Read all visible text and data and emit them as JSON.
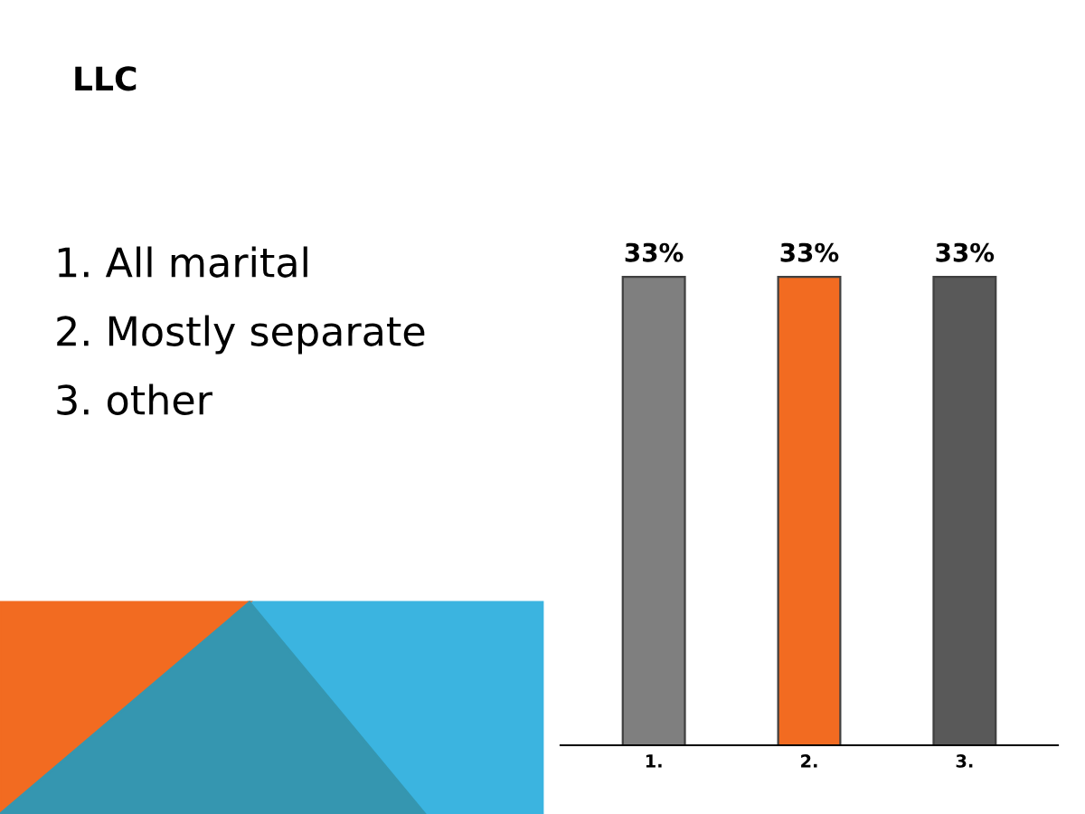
{
  "chart_data": {
    "type": "bar",
    "title": "LLC",
    "annotations": [
      "1. All marital",
      "2. Mostly separate",
      "3. other"
    ],
    "categories": [
      "1.",
      "2.",
      "3."
    ],
    "values": [
      33,
      33,
      33
    ],
    "colors": [
      "#7f7f7f",
      "#f26b21",
      "#595959"
    ],
    "value_labels": [
      "33%",
      "33%",
      "33%"
    ],
    "grid": false,
    "legend": false
  }
}
